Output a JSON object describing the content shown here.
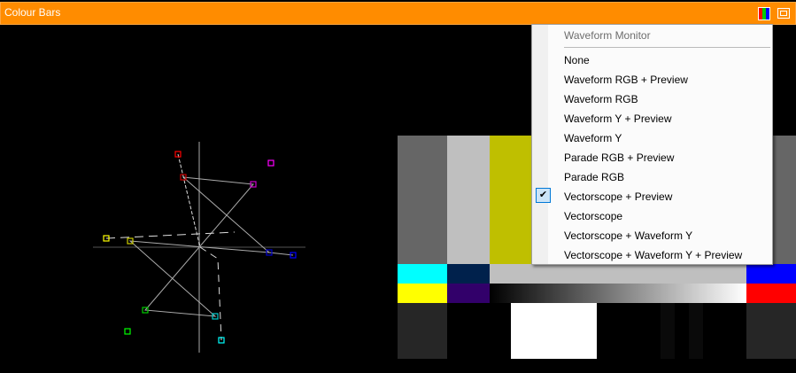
{
  "window": {
    "title": "Colour Bars",
    "icons": [
      "rgb-channels-icon",
      "window-mode-icon"
    ]
  },
  "menu": {
    "title": "Waveform Monitor",
    "items": [
      {
        "label": "None"
      },
      {
        "label": "Waveform RGB + Preview"
      },
      {
        "label": "Waveform RGB"
      },
      {
        "label": "Waveform Y + Preview"
      },
      {
        "label": "Waveform Y"
      },
      {
        "label": "Parade RGB + Preview"
      },
      {
        "label": "Parade RGB"
      },
      {
        "label": "Vectorscope + Preview",
        "checked": true
      },
      {
        "label": "Vectorscope"
      },
      {
        "label": "Vectorscope + Waveform Y"
      },
      {
        "label": "Vectorscope + Waveform Y + Preview"
      }
    ]
  },
  "colors": {
    "titlebar": "#ff8c00",
    "check_bg": "#cce4f7"
  }
}
